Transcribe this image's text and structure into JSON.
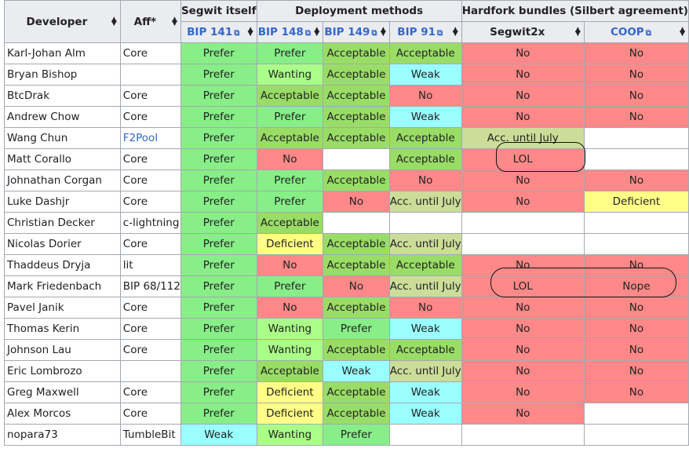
{
  "header": {
    "developer": "Developer",
    "aff": "Aff*",
    "segwit_itself": "Segwit itself",
    "deployment_methods": "Deployment methods",
    "hardfork_bundles": "Hardfork bundles (Silbert agreement)",
    "bip141": "BIP 141",
    "bip148": "BIP 148",
    "bip149": "BIP 149",
    "bip91": "BIP 91",
    "segwit2x": "Segwit2x",
    "coop": "COOP"
  },
  "rows": [
    {
      "name": "Karl-Johan Alm",
      "aff": "Core",
      "cells": [
        "Prefer",
        "Prefer",
        "Acceptable",
        "Acceptable",
        "No",
        "No"
      ]
    },
    {
      "name": "Bryan Bishop",
      "aff": "",
      "cells": [
        "Prefer",
        "Wanting",
        "Acceptable",
        "Weak",
        "No",
        "No"
      ]
    },
    {
      "name": "BtcDrak",
      "aff": "Core",
      "cells": [
        "Prefer",
        "Acceptable",
        "Acceptable",
        "No",
        "No",
        "No"
      ]
    },
    {
      "name": "Andrew Chow",
      "aff": "Core",
      "cells": [
        "Prefer",
        "Prefer",
        "Acceptable",
        "Weak",
        "No",
        "No"
      ]
    },
    {
      "name": "Wang Chun",
      "aff": "F2Pool",
      "cells": [
        "Prefer",
        "Acceptable",
        "Acceptable",
        "Acceptable",
        "Acc. until July",
        ""
      ]
    },
    {
      "name": "Matt Corallo",
      "aff": "Core",
      "cells": [
        "Prefer",
        "No",
        "",
        "Acceptable",
        "LOL",
        ""
      ]
    },
    {
      "name": "Johnathan Corgan",
      "aff": "Core",
      "cells": [
        "Prefer",
        "Prefer",
        "Acceptable",
        "No",
        "No",
        "No"
      ]
    },
    {
      "name": "Luke Dashjr",
      "aff": "Core",
      "cells": [
        "Prefer",
        "Prefer",
        "No",
        "Acc. until July",
        "No",
        "Deficient"
      ]
    },
    {
      "name": "Christian Decker",
      "aff": "c-lightning",
      "cells": [
        "Prefer",
        "Acceptable",
        "",
        "",
        "",
        ""
      ]
    },
    {
      "name": "Nicolas Dorier",
      "aff": "Core",
      "cells": [
        "Prefer",
        "Deficient",
        "Acceptable",
        "Acc. until July",
        "",
        ""
      ]
    },
    {
      "name": "Thaddeus Dryja",
      "aff": "lit",
      "cells": [
        "Prefer",
        "No",
        "Acceptable",
        "Acceptable",
        "No",
        "No"
      ]
    },
    {
      "name": "Mark Friedenbach",
      "aff": "BIP 68/112",
      "cells": [
        "Prefer",
        "Prefer",
        "No",
        "Acc. until July",
        "LOL",
        "Nope"
      ]
    },
    {
      "name": "Pavel Janik",
      "aff": "Core",
      "cells": [
        "Prefer",
        "No",
        "Acceptable",
        "No",
        "No",
        "No"
      ]
    },
    {
      "name": "Thomas Kerin",
      "aff": "Core",
      "cells": [
        "Prefer",
        "Wanting",
        "Prefer",
        "Weak",
        "No",
        "No"
      ]
    },
    {
      "name": "Johnson Lau",
      "aff": "Core",
      "cells": [
        "Prefer",
        "Wanting",
        "Acceptable",
        "Acceptable",
        "No",
        "No"
      ]
    },
    {
      "name": "Eric Lombrozo",
      "aff": "",
      "cells": [
        "Prefer",
        "Acceptable",
        "Weak",
        "Acc. until July",
        "No",
        "No"
      ]
    },
    {
      "name": "Greg Maxwell",
      "aff": "Core",
      "cells": [
        "Prefer",
        "Deficient",
        "Acceptable",
        "Weak",
        "No",
        "No"
      ]
    },
    {
      "name": "Alex Morcos",
      "aff": "Core",
      "cells": [
        "Prefer",
        "Deficient",
        "Acceptable",
        "Weak",
        "No",
        ""
      ]
    },
    {
      "name": "nopara73",
      "aff": "TumbleBit",
      "cells": [
        "Weak",
        "Wanting",
        "Prefer",
        "",
        "",
        ""
      ]
    }
  ],
  "colors": {
    "Prefer": "#88ee88",
    "Acceptable": "#99dd66",
    "Wanting": "#aaff88",
    "Weak": "#99ffff",
    "No": "#ff8888",
    "Deficient": "#ffff88",
    "Acc. until July": "#ccdd99",
    "LOL": "#ff8888",
    "Nope": "#ff8888"
  }
}
